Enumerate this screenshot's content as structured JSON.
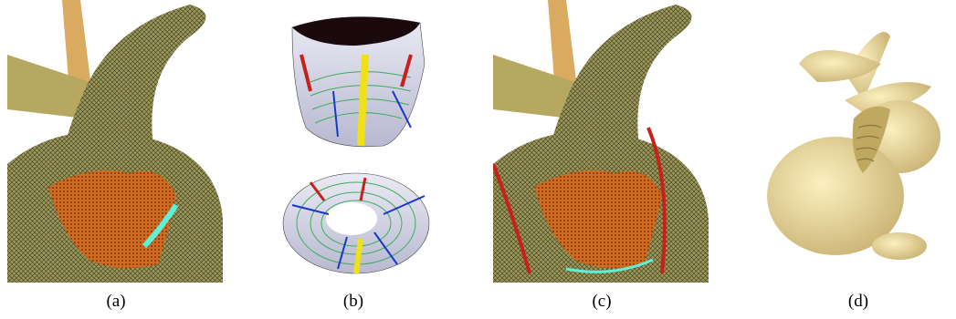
{
  "captions": {
    "a": "(a)",
    "b": "(b)",
    "c": "(c)",
    "d": "(d)"
  },
  "colors": {
    "mesh_olive": "#8f8b4e",
    "bunny_body": "#efe0a0",
    "patch_orange": "#d26a1e",
    "boundary_cyan": "#5ff0d8",
    "boundary_red": "#c8201a",
    "strip_yellow": "#f0e018",
    "line_blue": "#1838c8",
    "line_green": "#3cae58",
    "background_tan": "#d9b064"
  }
}
